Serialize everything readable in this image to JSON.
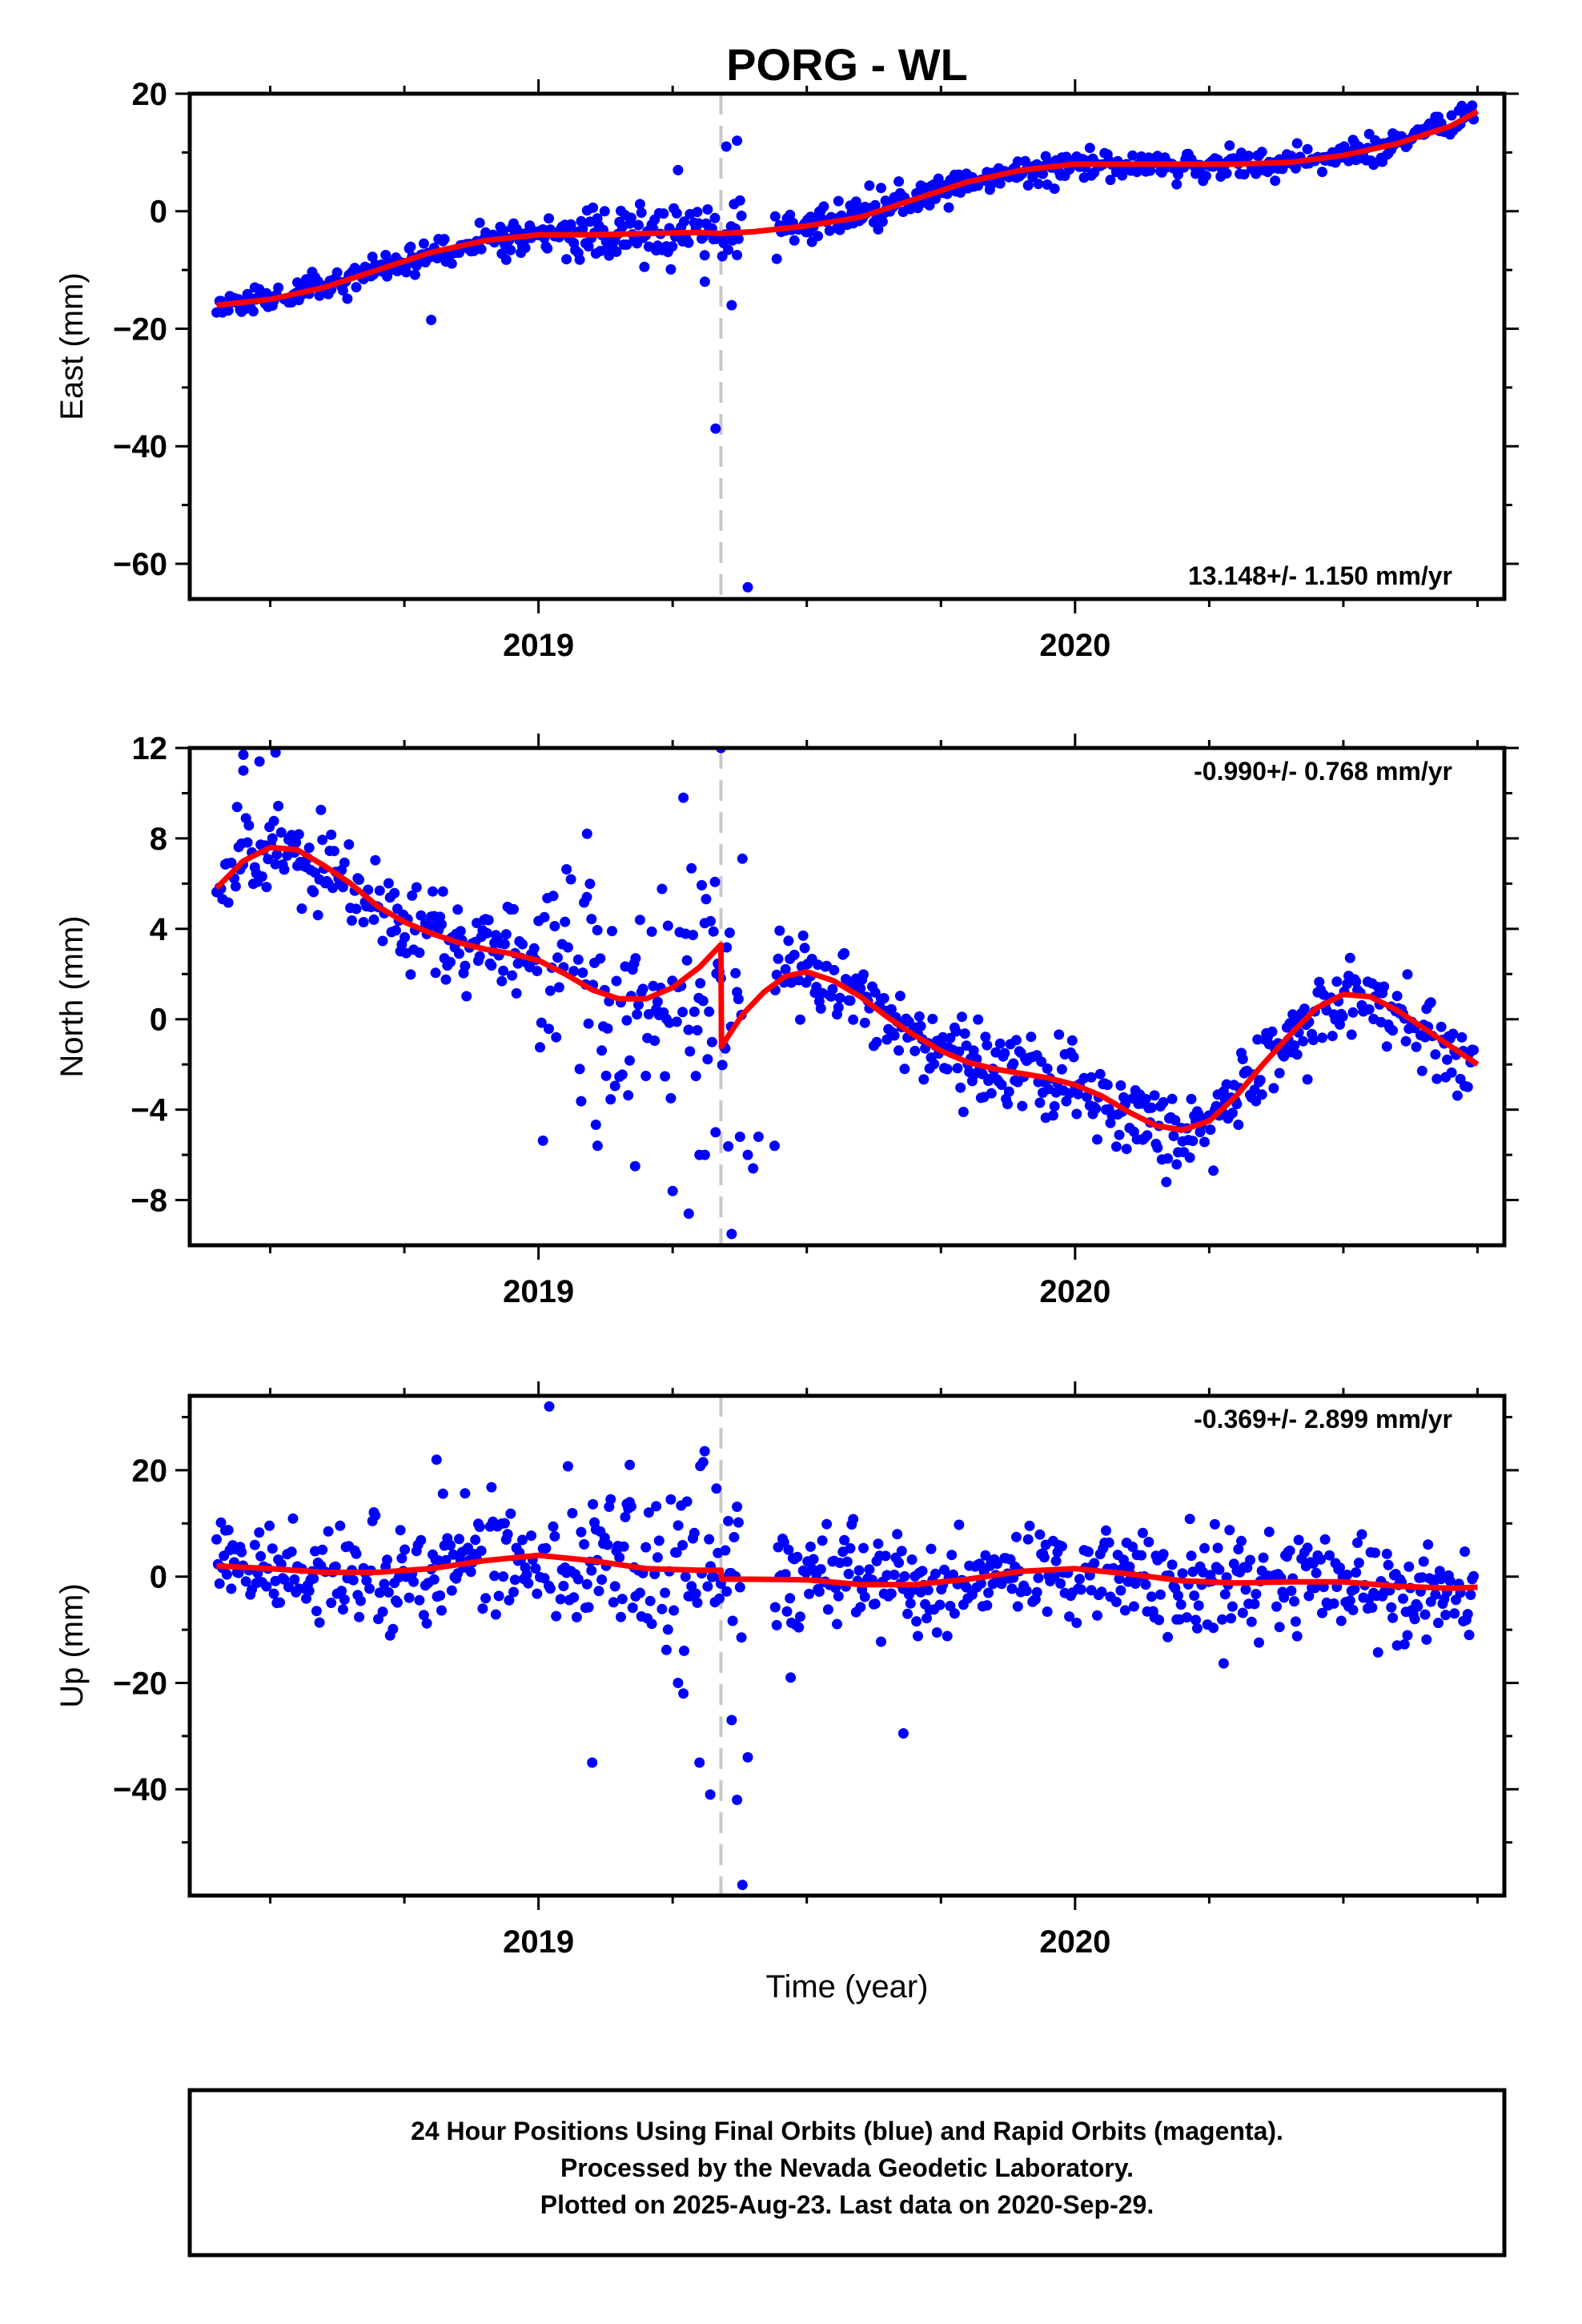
{
  "figure": {
    "title": "PORG - WL",
    "x_axis_label": "Time (year)",
    "footer_lines": [
      "24 Hour Positions Using Final Orbits (blue) and Rapid Orbits (magenta).",
      "Processed by the Nevada Geodetic Laboratory.",
      "Plotted on 2025-Aug-23. Last data on 2020-Sep-29."
    ]
  },
  "colors": {
    "final_orbits": "#0000ff",
    "model_fit": "#ff0000",
    "event_marker": "#c8c8c8",
    "frame": "#000000"
  },
  "chart_data": [
    {
      "type": "scatter",
      "ylabel": "East (mm)",
      "xlim": [
        2018.35,
        2020.8
      ],
      "ylim": [
        -66,
        20
      ],
      "yticks": [
        20,
        0,
        -20,
        -40,
        -60
      ],
      "yminor": [
        10,
        -10,
        -30,
        -50
      ],
      "xticks": [
        2019,
        2020
      ],
      "xminor": [
        2018.5,
        2018.75,
        2019.25,
        2019.5,
        2019.75,
        2020.25,
        2020.5,
        2020.75
      ],
      "event_lines": [
        2019.34
      ],
      "rate_label": "13.148+/- 1.150 mm/yr",
      "rate_position": "bottom-right",
      "model": {
        "x": [
          2018.4,
          2018.5,
          2018.6,
          2018.7,
          2018.8,
          2018.9,
          2019.0,
          2019.1,
          2019.2,
          2019.3,
          2019.34,
          2019.4,
          2019.5,
          2019.6,
          2019.7,
          2019.8,
          2019.9,
          2020.0,
          2020.1,
          2020.2,
          2020.3,
          2020.4,
          2020.5,
          2020.6,
          2020.7,
          2020.75
        ],
        "y": [
          -16.0,
          -15.0,
          -13.0,
          -10.0,
          -7.0,
          -5.0,
          -4.0,
          -4.0,
          -3.8,
          -3.6,
          -3.8,
          -3.5,
          -2.5,
          -1.0,
          2.0,
          5.0,
          7.0,
          8.0,
          8.0,
          8.0,
          8.0,
          8.3,
          9.5,
          11.5,
          14.5,
          17.0
        ]
      },
      "outliers": {
        "x": [
          2018.8,
          2019.26,
          2019.31,
          2019.33,
          2019.35,
          2019.36,
          2019.37,
          2019.39
        ],
        "y": [
          -18.5,
          7.0,
          -12.0,
          -37.0,
          11.0,
          -16.0,
          12.0,
          -64.0
        ]
      },
      "noise_seed": 11,
      "noise_sd": 1.3,
      "noise_sd_wide": 2.3,
      "wide_range": [
        2019.05,
        2019.45
      ]
    },
    {
      "type": "scatter",
      "ylabel": "North (mm)",
      "xlim": [
        2018.35,
        2020.8
      ],
      "ylim": [
        -10,
        12
      ],
      "yticks": [
        12,
        8,
        4,
        0,
        -4,
        -8
      ],
      "yminor": [
        10,
        6,
        2,
        -2,
        -6
      ],
      "xticks": [
        2019,
        2020
      ],
      "xminor": [
        2018.5,
        2018.75,
        2019.25,
        2019.5,
        2019.75,
        2020.25,
        2020.5,
        2020.75
      ],
      "event_lines": [
        2019.34
      ],
      "rate_label": "-0.990+/- 0.768 mm/yr",
      "rate_position": "top-right",
      "model": {
        "x": [
          2018.4,
          2018.45,
          2018.5,
          2018.55,
          2018.6,
          2018.65,
          2018.7,
          2018.75,
          2018.8,
          2018.85,
          2018.9,
          2018.95,
          2019.0,
          2019.05,
          2019.1,
          2019.15,
          2019.2,
          2019.25,
          2019.3,
          2019.34,
          2019.341,
          2019.38,
          2019.42,
          2019.46,
          2019.5,
          2019.55,
          2019.6,
          2019.65,
          2019.7,
          2019.75,
          2019.8,
          2019.85,
          2019.9,
          2019.95,
          2020.0,
          2020.05,
          2020.1,
          2020.15,
          2020.2,
          2020.25,
          2020.3,
          2020.35,
          2020.4,
          2020.45,
          2020.5,
          2020.55,
          2020.6,
          2020.65,
          2020.7,
          2020.75
        ],
        "y": [
          5.8,
          7.0,
          7.6,
          7.5,
          6.8,
          6.0,
          5.0,
          4.3,
          3.8,
          3.4,
          3.1,
          2.9,
          2.6,
          2.0,
          1.3,
          0.9,
          0.9,
          1.4,
          2.3,
          3.3,
          -1.2,
          0.2,
          1.2,
          1.9,
          2.1,
          1.7,
          1.0,
          0.1,
          -0.7,
          -1.4,
          -1.9,
          -2.2,
          -2.4,
          -2.6,
          -2.9,
          -3.4,
          -4.1,
          -4.7,
          -4.9,
          -4.5,
          -3.4,
          -2.0,
          -0.7,
          0.5,
          1.1,
          1.0,
          0.4,
          -0.4,
          -1.2,
          -2.0
        ]
      },
      "outliers": {
        "x": [
          2018.45,
          2018.51,
          2018.45,
          2018.48,
          2019.09,
          2019.11,
          2019.18,
          2019.25,
          2019.27,
          2019.28,
          2019.3,
          2019.34,
          2019.36,
          2019.38,
          2019.39,
          2019.4,
          2019.33,
          2019.31,
          2019.44,
          2019.41
        ],
        "y": [
          11.7,
          11.8,
          11.0,
          11.4,
          5.4,
          -5.6,
          -6.5,
          -7.6,
          9.8,
          -8.6,
          -6.0,
          12.0,
          -9.5,
          7.1,
          -6.0,
          -6.6,
          -5.0,
          -6.0,
          -5.6,
          -5.2
        ]
      },
      "noise_seed": 29,
      "noise_sd": 0.9,
      "noise_sd_wide": 2.6,
      "wide_range": [
        2019.0,
        2019.45
      ]
    },
    {
      "type": "scatter",
      "ylabel": "Up (mm)",
      "xlim": [
        2018.35,
        2020.8
      ],
      "ylim": [
        -60,
        34
      ],
      "yticks": [
        20,
        0,
        -20,
        -40
      ],
      "yminor": [
        30,
        10,
        -10,
        -30,
        -50
      ],
      "xticks": [
        2019,
        2020
      ],
      "xminor": [
        2018.5,
        2018.75,
        2019.25,
        2019.5,
        2019.75,
        2020.25,
        2020.5,
        2020.75
      ],
      "event_lines": [
        2019.34
      ],
      "rate_label": "-0.369+/- 2.899 mm/yr",
      "rate_position": "top-right",
      "model": {
        "x": [
          2018.4,
          2018.5,
          2018.6,
          2018.7,
          2018.8,
          2018.9,
          2019.0,
          2019.1,
          2019.2,
          2019.3,
          2019.34,
          2019.341,
          2019.4,
          2019.5,
          2019.6,
          2019.7,
          2019.8,
          2019.9,
          2020.0,
          2020.1,
          2020.2,
          2020.3,
          2020.4,
          2020.5,
          2020.6,
          2020.7,
          2020.75
        ],
        "y": [
          2.0,
          1.5,
          0.8,
          0.8,
          1.5,
          3.0,
          4.0,
          3.0,
          1.5,
          1.2,
          1.2,
          -0.5,
          -0.5,
          -0.6,
          -1.5,
          -1.5,
          -0.5,
          1.0,
          1.5,
          0.5,
          -0.8,
          -1.2,
          -1.0,
          -1.0,
          -1.8,
          -2.2,
          -2.0
        ]
      },
      "outliers": {
        "x": [
          2018.81,
          2019.02,
          2019.1,
          2019.17,
          2019.26,
          2019.32,
          2019.37,
          2019.36,
          2019.38,
          2019.39,
          2019.47,
          2019.68,
          2019.3,
          2019.27
        ],
        "y": [
          22.0,
          32.0,
          -35.0,
          21.0,
          -20.0,
          -41.0,
          -42.0,
          -27.0,
          -58.0,
          -34.0,
          -19.0,
          -29.5,
          -35.0,
          -22.0
        ]
      },
      "noise_seed": 47,
      "noise_sd": 4.5,
      "noise_sd_wide": 8.0,
      "wide_range": [
        2019.05,
        2019.45
      ]
    }
  ],
  "series_sampling": {
    "x_start": 2018.4,
    "x_end": 2020.745,
    "step": 0.00274,
    "gap": [
      2019.38,
      2019.44
    ]
  }
}
